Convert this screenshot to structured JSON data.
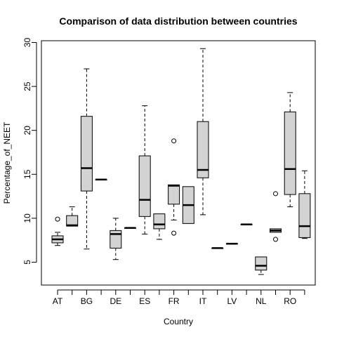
{
  "chart_data": {
    "type": "boxplot",
    "title": "Comparison of data distribution between countries",
    "xlabel": "Country",
    "ylabel": "Percentage_of_NEET",
    "ylim": [
      2.4,
      30.2
    ],
    "yticks": [
      5,
      10,
      15,
      20,
      25,
      30
    ],
    "tick_labels": [
      "AT",
      "BG",
      "DE",
      "ES",
      "FR",
      "IT",
      "LV",
      "NL",
      "RO"
    ],
    "grid": false,
    "box_fill": "#d3d3d3",
    "boxes": [
      {
        "label": "AT",
        "whisker_low": 6.9,
        "q1": 7.2,
        "median": 7.6,
        "q3": 8.0,
        "whisker_high": 8.4,
        "outliers": [
          9.9
        ]
      },
      {
        "label": "",
        "whisker_low": 9.1,
        "q1": 9.1,
        "median": 9.2,
        "q3": 10.3,
        "whisker_high": 11.3,
        "outliers": []
      },
      {
        "label": "BG",
        "whisker_low": 6.5,
        "q1": 13.1,
        "median": 15.7,
        "q3": 21.6,
        "whisker_high": 27.0,
        "outliers": []
      },
      {
        "label": "",
        "whisker_low": 14.4,
        "q1": 14.4,
        "median": 14.4,
        "q3": 14.4,
        "whisker_high": 14.4,
        "outliers": []
      },
      {
        "label": "DE",
        "whisker_low": 5.3,
        "q1": 6.6,
        "median": 8.2,
        "q3": 8.6,
        "whisker_high": 10.0,
        "outliers": []
      },
      {
        "label": "",
        "whisker_low": 8.9,
        "q1": 8.9,
        "median": 8.9,
        "q3": 8.9,
        "whisker_high": 8.9,
        "outliers": []
      },
      {
        "label": "ES",
        "whisker_low": 8.2,
        "q1": 10.2,
        "median": 12.1,
        "q3": 17.1,
        "whisker_high": 22.8,
        "outliers": []
      },
      {
        "label": "",
        "whisker_low": 7.6,
        "q1": 8.8,
        "median": 9.3,
        "q3": 10.5,
        "whisker_high": 10.5,
        "outliers": []
      },
      {
        "label": "FR",
        "whisker_low": 9.8,
        "q1": 11.6,
        "median": 13.7,
        "q3": 13.8,
        "whisker_high": 13.8,
        "outliers": [
          8.3,
          18.8
        ]
      },
      {
        "label": "",
        "whisker_low": 9.4,
        "q1": 9.4,
        "median": 11.5,
        "q3": 13.6,
        "whisker_high": 13.6,
        "outliers": []
      },
      {
        "label": "IT",
        "whisker_low": 10.4,
        "q1": 14.6,
        "median": 15.5,
        "q3": 21.0,
        "whisker_high": 29.3,
        "outliers": []
      },
      {
        "label": "",
        "whisker_low": 6.6,
        "q1": 6.6,
        "median": 6.6,
        "q3": 6.6,
        "whisker_high": 6.6,
        "outliers": []
      },
      {
        "label": "LV",
        "whisker_low": 7.1,
        "q1": 7.1,
        "median": 7.1,
        "q3": 7.1,
        "whisker_high": 7.1,
        "outliers": []
      },
      {
        "label": "",
        "whisker_low": 9.3,
        "q1": 9.3,
        "median": 9.3,
        "q3": 9.3,
        "whisker_high": 9.3,
        "outliers": []
      },
      {
        "label": "NL",
        "whisker_low": 3.6,
        "q1": 4.1,
        "median": 4.6,
        "q3": 5.6,
        "whisker_high": 5.6,
        "outliers": []
      },
      {
        "label": "",
        "whisker_low": 8.4,
        "q1": 8.4,
        "median": 8.6,
        "q3": 8.8,
        "whisker_high": 8.8,
        "outliers": [
          7.6,
          12.8
        ]
      },
      {
        "label": "RO",
        "whisker_low": 11.3,
        "q1": 12.7,
        "median": 15.6,
        "q3": 22.1,
        "whisker_high": 24.3,
        "outliers": []
      },
      {
        "label": "",
        "whisker_low": 7.7,
        "q1": 7.8,
        "median": 9.1,
        "q3": 12.8,
        "whisker_high": 15.4,
        "outliers": []
      }
    ]
  }
}
